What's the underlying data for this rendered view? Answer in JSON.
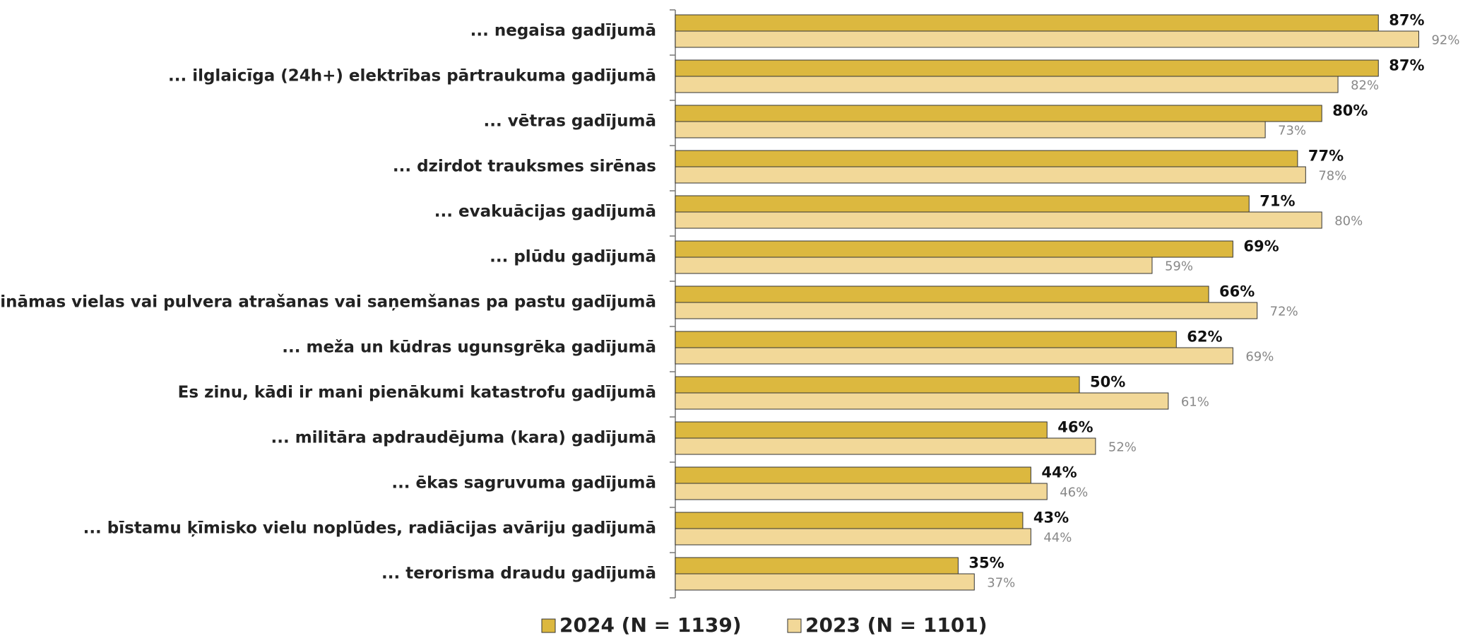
{
  "chart_data": {
    "type": "bar",
    "orientation": "horizontal",
    "categories": [
      "... negaisa gadījumā",
      "... ilglaicīga (24h+) elektrības pārtraukuma gadījumā",
      "... vētras gadījumā",
      "... dzirdot trauksmes sirēnas",
      "... evakuācijas gadījumā",
      "... plūdu gadījumā",
      "... nezināmas vielas vai pulvera atrašanas vai saņemšanas pa pastu gadījumā",
      "... meža un kūdras ugunsgrēka gadījumā",
      "Es zinu, kādi ir mani pienākumi katastrofu gadījumā",
      "... militāra apdraudējuma (kara) gadījumā",
      "... ēkas sagruvuma gadījumā",
      "... bīstamu ķīmisko vielu noplūdes, radiācijas avāriju gadījumā",
      "... terorisma draudu gadījumā"
    ],
    "series": [
      {
        "name": "2024 (N = 1139)",
        "color": "#dcb83f",
        "values": [
          87,
          87,
          80,
          77,
          71,
          69,
          66,
          62,
          50,
          46,
          44,
          43,
          35
        ],
        "value_labels": [
          "87%",
          "87%",
          "80%",
          "77%",
          "71%",
          "69%",
          "66%",
          "62%",
          "50%",
          "46%",
          "44%",
          "43%",
          "35%"
        ]
      },
      {
        "name": "2023 (N = 1101)",
        "color": "#f2d898",
        "values": [
          92,
          82,
          73,
          78,
          80,
          59,
          72,
          69,
          61,
          52,
          46,
          44,
          37
        ],
        "value_labels": [
          "92%",
          "82%",
          "73%",
          "78%",
          "80%",
          "59%",
          "72%",
          "69%",
          "61%",
          "52%",
          "46%",
          "44%",
          "37%"
        ]
      }
    ],
    "xlim": [
      0,
      100
    ],
    "legend": "bottom"
  }
}
